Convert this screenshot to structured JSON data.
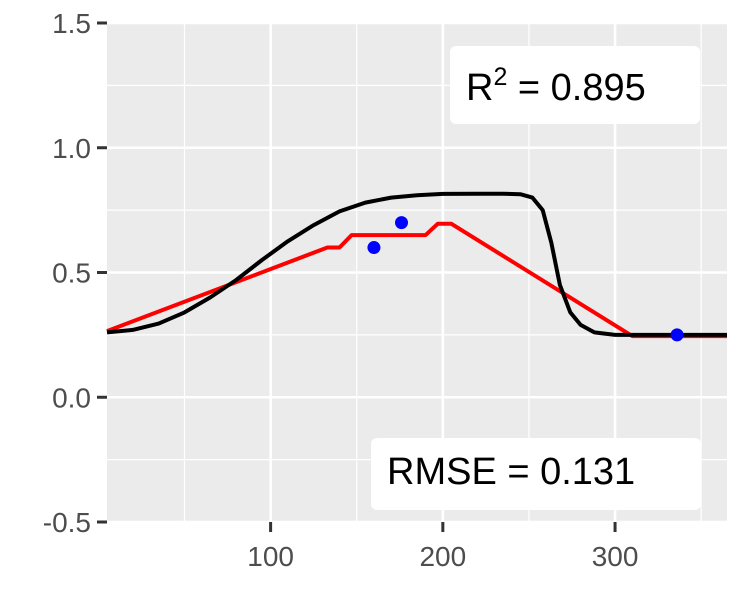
{
  "chart_data": {
    "type": "line",
    "title": "",
    "xlabel": "",
    "ylabel": "",
    "xlim": [
      5,
      365
    ],
    "ylim": [
      -0.5,
      1.5
    ],
    "x_ticks": [
      {
        "value": 100,
        "label": "100"
      },
      {
        "value": 200,
        "label": "200"
      },
      {
        "value": 300,
        "label": "300"
      }
    ],
    "y_ticks": [
      {
        "value": -0.5,
        "label": "-0.5"
      },
      {
        "value": 0.0,
        "label": "0.0"
      },
      {
        "value": 0.5,
        "label": "0.5"
      },
      {
        "value": 1.0,
        "label": "1.0"
      },
      {
        "value": 1.5,
        "label": "1.5"
      }
    ],
    "x_minor": [
      50,
      150,
      250,
      350
    ],
    "y_minor": [
      -0.25,
      0.25,
      0.75,
      1.25
    ],
    "grid": true,
    "background": "#ebebeb",
    "series": [
      {
        "kind": "line",
        "color": "#ff0000",
        "points": [
          [
            5,
            0.265
          ],
          [
            133,
            0.6
          ],
          [
            140,
            0.6
          ],
          [
            147,
            0.65
          ],
          [
            190,
            0.65
          ],
          [
            197,
            0.695
          ],
          [
            205,
            0.695
          ],
          [
            310,
            0.245
          ],
          [
            365,
            0.245
          ]
        ]
      },
      {
        "kind": "line",
        "color": "#000000",
        "points": [
          [
            5,
            0.26
          ],
          [
            20,
            0.27
          ],
          [
            35,
            0.295
          ],
          [
            50,
            0.34
          ],
          [
            65,
            0.4
          ],
          [
            80,
            0.47
          ],
          [
            95,
            0.55
          ],
          [
            110,
            0.625
          ],
          [
            125,
            0.69
          ],
          [
            140,
            0.745
          ],
          [
            155,
            0.78
          ],
          [
            170,
            0.8
          ],
          [
            185,
            0.81
          ],
          [
            200,
            0.815
          ],
          [
            220,
            0.816
          ],
          [
            235,
            0.816
          ],
          [
            245,
            0.814
          ],
          [
            252,
            0.8
          ],
          [
            258,
            0.75
          ],
          [
            263,
            0.62
          ],
          [
            268,
            0.45
          ],
          [
            274,
            0.34
          ],
          [
            280,
            0.29
          ],
          [
            288,
            0.26
          ],
          [
            300,
            0.25
          ],
          [
            320,
            0.25
          ],
          [
            365,
            0.25
          ]
        ]
      },
      {
        "kind": "scatter",
        "color": "#0000ff",
        "points": [
          [
            160,
            0.6
          ],
          [
            176,
            0.7
          ],
          [
            336,
            0.25
          ]
        ]
      }
    ],
    "annotations": {
      "r2": {
        "base": "R",
        "sup": "2",
        "rest": " = 0.895"
      },
      "rmse": {
        "text": "RMSE = 0.131"
      }
    }
  }
}
